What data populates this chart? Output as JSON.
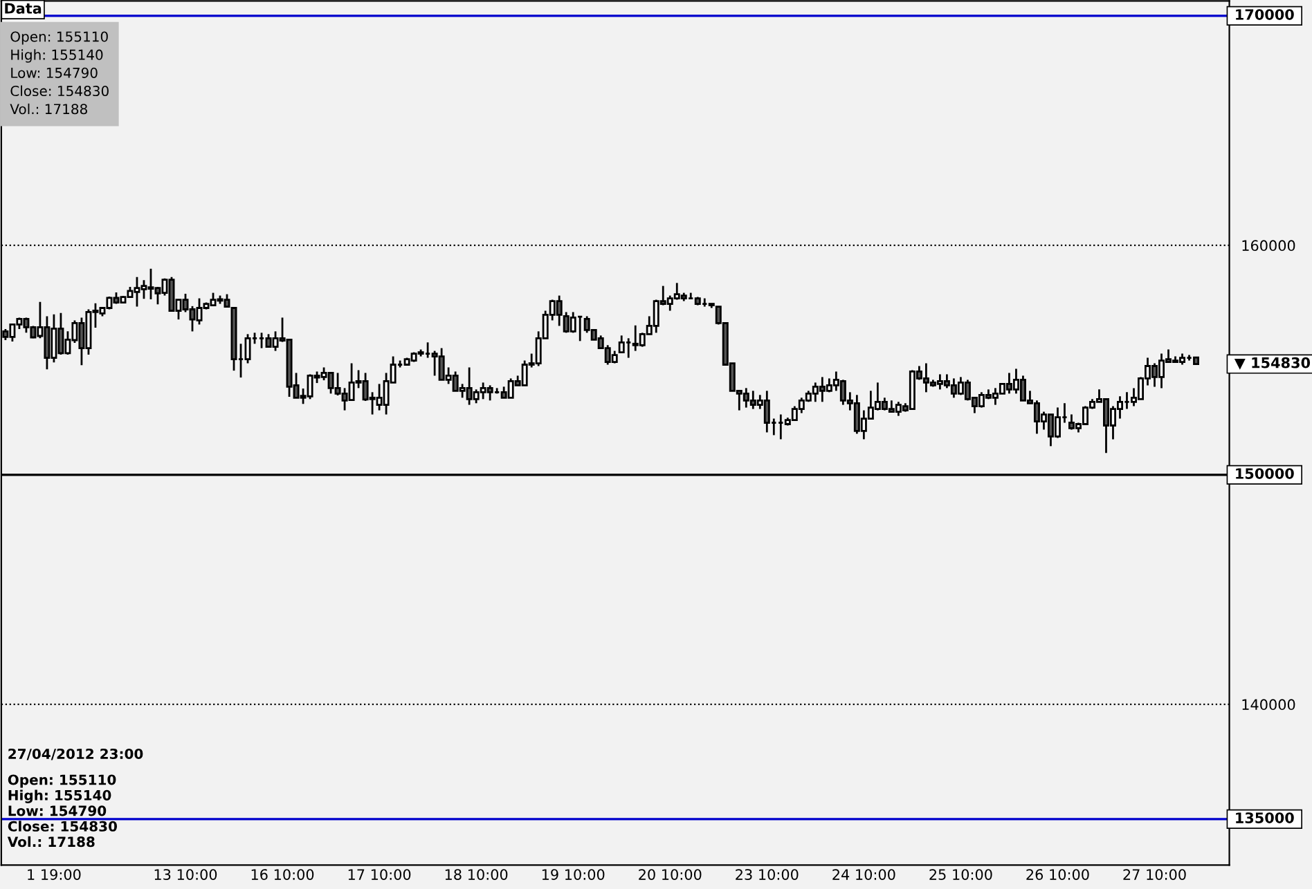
{
  "chart_data": {
    "type": "candlestick",
    "categories": [
      null,
      null,
      null,
      null,
      null,
      null,
      null,
      "1 19:00",
      null,
      null,
      null,
      null,
      null,
      null,
      null,
      null,
      null,
      null,
      null,
      null,
      null,
      null,
      null,
      null,
      null,
      null,
      "13 10:00",
      null,
      null,
      null,
      null,
      null,
      null,
      null,
      null,
      null,
      null,
      null,
      null,
      null,
      "16 10:00",
      null,
      null,
      null,
      null,
      null,
      null,
      null,
      null,
      null,
      null,
      null,
      null,
      null,
      "17 10:00",
      null,
      null,
      null,
      null,
      null,
      null,
      null,
      null,
      null,
      null,
      null,
      null,
      null,
      "18 10:00",
      null,
      null,
      null,
      null,
      null,
      null,
      null,
      null,
      null,
      null,
      null,
      null,
      null,
      "19 10:00",
      null,
      null,
      null,
      null,
      null,
      null,
      null,
      null,
      null,
      null,
      null,
      null,
      null,
      "20 10:00",
      null,
      null,
      null,
      null,
      null,
      null,
      null,
      null,
      null,
      null,
      null,
      null,
      null,
      "23 10:00",
      null,
      null,
      null,
      null,
      null,
      null,
      null,
      null,
      null,
      null,
      null,
      null,
      null,
      "24 10:00",
      null,
      null,
      null,
      null,
      null,
      null,
      null,
      null,
      null,
      null,
      null,
      null,
      null,
      "25 10:00",
      null,
      null,
      null,
      null,
      null,
      null,
      null,
      null,
      null,
      null,
      null,
      null,
      null,
      "26 10:00",
      null,
      null,
      null,
      null,
      null,
      null,
      null,
      null,
      null,
      null,
      null,
      null,
      null,
      "27 10:00",
      null,
      null,
      null,
      null,
      null,
      null
    ],
    "ohlc": [
      [
        156250,
        156350,
        155870,
        156010
      ],
      [
        156010,
        156550,
        155810,
        156550
      ],
      [
        156550,
        156850,
        156350,
        156790
      ],
      [
        156790,
        156850,
        156190,
        156430
      ],
      [
        156430,
        156490,
        155950,
        155990
      ],
      [
        156050,
        157530,
        155950,
        156430
      ],
      [
        156430,
        156910,
        154600,
        155100
      ],
      [
        155100,
        156990,
        154900,
        156370
      ],
      [
        156370,
        157050,
        155240,
        155300
      ],
      [
        155300,
        156250,
        155240,
        155890
      ],
      [
        155870,
        156730,
        155750,
        156610
      ],
      [
        156610,
        156850,
        154780,
        155520
      ],
      [
        155520,
        157210,
        155240,
        157090
      ],
      [
        157090,
        157470,
        156410,
        157150
      ],
      [
        157030,
        157270,
        156910,
        157270
      ],
      [
        157270,
        157770,
        157210,
        157710
      ],
      [
        157710,
        157950,
        157450,
        157510
      ],
      [
        157510,
        157790,
        157470,
        157750
      ],
      [
        157750,
        158190,
        157710,
        158010
      ],
      [
        157970,
        158620,
        157330,
        158140
      ],
      [
        158090,
        158480,
        157670,
        158230
      ],
      [
        158170,
        158980,
        157650,
        158110
      ],
      [
        158140,
        158190,
        157430,
        157910
      ],
      [
        157930,
        158560,
        157810,
        158500
      ],
      [
        158500,
        158620,
        157150,
        157150
      ],
      [
        157150,
        157630,
        156770,
        157630
      ],
      [
        157630,
        157890,
        157090,
        157210
      ],
      [
        157210,
        157350,
        156250,
        156770
      ],
      [
        156730,
        157690,
        156550,
        157270
      ],
      [
        157270,
        157510,
        157210,
        157450
      ],
      [
        157390,
        157930,
        157390,
        157630
      ],
      [
        157650,
        157810,
        157450,
        157590
      ],
      [
        157630,
        157870,
        157330,
        157330
      ],
      [
        157270,
        157270,
        154540,
        155040
      ],
      [
        155040,
        155710,
        154240,
        155040
      ],
      [
        155040,
        156130,
        154860,
        155950
      ],
      [
        155950,
        156190,
        155710,
        155950
      ],
      [
        155950,
        156190,
        155520,
        155950
      ],
      [
        155950,
        156130,
        155580,
        155580
      ],
      [
        155580,
        156250,
        155400,
        155950
      ],
      [
        155950,
        156850,
        155790,
        155850
      ],
      [
        155890,
        155890,
        153400,
        153840
      ],
      [
        153900,
        154440,
        153360,
        153360
      ],
      [
        153440,
        153760,
        153090,
        153360
      ],
      [
        153420,
        154380,
        153300,
        154320
      ],
      [
        154320,
        154500,
        154000,
        154240
      ],
      [
        154260,
        154680,
        154120,
        154440
      ],
      [
        154440,
        154440,
        153540,
        153780
      ],
      [
        153780,
        154440,
        153460,
        153540
      ],
      [
        153540,
        153780,
        152810,
        153240
      ],
      [
        153260,
        154860,
        153220,
        154020
      ],
      [
        154080,
        154560,
        153780,
        154020
      ],
      [
        154080,
        154440,
        153220,
        153280
      ],
      [
        153360,
        153600,
        152630,
        153300
      ],
      [
        153050,
        153960,
        152810,
        153360
      ],
      [
        153050,
        154440,
        152630,
        154080
      ],
      [
        154020,
        155160,
        154020,
        154800
      ],
      [
        154800,
        154980,
        154680,
        154800
      ],
      [
        154800,
        155100,
        154800,
        155040
      ],
      [
        154980,
        155340,
        154920,
        155280
      ],
      [
        155280,
        155460,
        155160,
        155340
      ],
      [
        155280,
        155770,
        155100,
        155280
      ],
      [
        155280,
        155400,
        154320,
        155160
      ],
      [
        155160,
        155520,
        154140,
        154140
      ],
      [
        154140,
        154680,
        153960,
        154320
      ],
      [
        154320,
        154500,
        153660,
        153660
      ],
      [
        153660,
        153960,
        153360,
        153780
      ],
      [
        153780,
        154680,
        153050,
        153300
      ],
      [
        153300,
        153720,
        153120,
        153600
      ],
      [
        153600,
        154020,
        153300,
        153780
      ],
      [
        153780,
        153900,
        153240,
        153600
      ],
      [
        153600,
        153780,
        153540,
        153600
      ],
      [
        153600,
        153840,
        153360,
        153360
      ],
      [
        153360,
        154200,
        153360,
        154080
      ],
      [
        154080,
        154320,
        153900,
        153900
      ],
      [
        153900,
        154980,
        153900,
        154800
      ],
      [
        154860,
        155280,
        154680,
        154800
      ],
      [
        154860,
        156250,
        154740,
        155950
      ],
      [
        155950,
        157150,
        155950,
        156970
      ],
      [
        156970,
        157630,
        156730,
        157570
      ],
      [
        157570,
        157810,
        156490,
        156970
      ],
      [
        156910,
        157090,
        156190,
        156250
      ],
      [
        156250,
        157090,
        156190,
        156850
      ],
      [
        156890,
        156910,
        155830,
        156890
      ],
      [
        156790,
        156910,
        156190,
        156310
      ],
      [
        156310,
        156310,
        155890,
        155890
      ],
      [
        155950,
        156070,
        155520,
        155520
      ],
      [
        155520,
        155650,
        154800,
        154920
      ],
      [
        154920,
        155400,
        154860,
        155220
      ],
      [
        155340,
        156070,
        155340,
        155770
      ],
      [
        155770,
        155950,
        155100,
        155770
      ],
      [
        155710,
        156510,
        155400,
        155650
      ],
      [
        155650,
        156190,
        155580,
        156130
      ],
      [
        156130,
        156910,
        156130,
        156490
      ],
      [
        156490,
        157630,
        156190,
        157570
      ],
      [
        157570,
        158230,
        157390,
        157450
      ],
      [
        157450,
        157810,
        157150,
        157690
      ],
      [
        157690,
        158360,
        157630,
        157870
      ],
      [
        157810,
        157930,
        157570,
        157690
      ],
      [
        157690,
        157930,
        157690,
        157690
      ],
      [
        157690,
        157750,
        157390,
        157450
      ],
      [
        157450,
        157690,
        157330,
        157450
      ],
      [
        157450,
        157450,
        157270,
        157390
      ],
      [
        157330,
        157330,
        156550,
        156610
      ],
      [
        156610,
        156610,
        154800,
        154800
      ],
      [
        154860,
        154860,
        153660,
        153660
      ],
      [
        153660,
        153660,
        152810,
        153540
      ],
      [
        153540,
        153780,
        152930,
        153240
      ],
      [
        153240,
        153660,
        152870,
        153050
      ],
      [
        153050,
        153480,
        152870,
        153240
      ],
      [
        153240,
        153660,
        151850,
        152270
      ],
      [
        152270,
        152450,
        151730,
        152270
      ],
      [
        152270,
        152630,
        151550,
        152270
      ],
      [
        152210,
        152490,
        152150,
        152390
      ],
      [
        152390,
        152990,
        152390,
        152870
      ],
      [
        152870,
        153360,
        152690,
        153240
      ],
      [
        153240,
        153660,
        153180,
        153540
      ],
      [
        153540,
        154020,
        153180,
        153840
      ],
      [
        153840,
        154260,
        153180,
        153660
      ],
      [
        153660,
        154200,
        153600,
        153900
      ],
      [
        153900,
        154500,
        153660,
        154140
      ],
      [
        154080,
        154140,
        153050,
        153240
      ],
      [
        153240,
        153600,
        152810,
        153120
      ],
      [
        153120,
        153480,
        151790,
        151910
      ],
      [
        151910,
        152810,
        151550,
        152450
      ],
      [
        152450,
        153660,
        152450,
        152930
      ],
      [
        152870,
        154020,
        152810,
        153180
      ],
      [
        153180,
        153360,
        152810,
        152870
      ],
      [
        152870,
        153240,
        152750,
        152750
      ],
      [
        152750,
        153180,
        152570,
        153050
      ],
      [
        152990,
        153120,
        152750,
        152810
      ],
      [
        152870,
        154560,
        152870,
        154500
      ],
      [
        154500,
        154740,
        154140,
        154200
      ],
      [
        154200,
        154860,
        153600,
        154020
      ],
      [
        154020,
        154140,
        153840,
        153900
      ],
      [
        153960,
        154380,
        153720,
        154080
      ],
      [
        154080,
        154380,
        153780,
        153900
      ],
      [
        153900,
        154200,
        153360,
        153540
      ],
      [
        153540,
        154260,
        153480,
        154020
      ],
      [
        154020,
        154140,
        153240,
        153300
      ],
      [
        153360,
        153360,
        152690,
        152990
      ],
      [
        152990,
        153600,
        152930,
        153480
      ],
      [
        153480,
        153720,
        153300,
        153360
      ],
      [
        153360,
        153780,
        153050,
        153540
      ],
      [
        153540,
        153960,
        153540,
        153960
      ],
      [
        153960,
        154440,
        153540,
        153720
      ],
      [
        153720,
        154620,
        153540,
        154140
      ],
      [
        154140,
        154320,
        153240,
        153240
      ],
      [
        153240,
        153660,
        153120,
        153120
      ],
      [
        153120,
        153240,
        151790,
        152330
      ],
      [
        152330,
        152750,
        151970,
        152630
      ],
      [
        152630,
        152630,
        151250,
        151670
      ],
      [
        151670,
        152930,
        151610,
        152510
      ],
      [
        152510,
        153120,
        152270,
        152510
      ],
      [
        152270,
        152630,
        151970,
        152030
      ],
      [
        152030,
        152270,
        151850,
        152210
      ],
      [
        152210,
        152990,
        152210,
        152930
      ],
      [
        152930,
        153300,
        152870,
        153180
      ],
      [
        153180,
        153720,
        153180,
        153300
      ],
      [
        153300,
        153300,
        150950,
        152150
      ],
      [
        152150,
        152990,
        151550,
        152870
      ],
      [
        152870,
        153420,
        152450,
        153180
      ],
      [
        153180,
        153600,
        152870,
        153180
      ],
      [
        153180,
        153780,
        152990,
        153360
      ],
      [
        153300,
        154260,
        153300,
        154200
      ],
      [
        154200,
        155100,
        153900,
        154740
      ],
      [
        154740,
        154860,
        153840,
        154260
      ],
      [
        154260,
        155280,
        153780,
        154980
      ],
      [
        155040,
        155460,
        154920,
        154920
      ],
      [
        154980,
        155160,
        154920,
        154920
      ],
      [
        154920,
        155280,
        154800,
        155100
      ],
      [
        155100,
        155220,
        154980,
        155100
      ],
      [
        155110,
        155140,
        154790,
        154830
      ]
    ],
    "colors": [
      "#555555",
      "#ffffff",
      "#ffffff",
      "#555555",
      "#555555",
      "#ffffff",
      "#555555",
      "#ffffff",
      "#555555",
      "#ffffff",
      "#ffffff",
      "#555555",
      "#ffffff",
      "#ffffff",
      "#ffffff",
      "#ffffff",
      "#555555",
      "#ffffff",
      "#ffffff",
      "#ffffff",
      "#ffffff",
      "#555555",
      "#555555",
      "#ffffff",
      "#555555",
      "#ffffff",
      "#555555",
      "#555555",
      "#ffffff",
      "#ffffff",
      "#ffffff",
      "#555555",
      "#555555",
      "#555555",
      "#000000",
      "#ffffff",
      "#000000",
      "#000000",
      "#555555",
      "#ffffff",
      "#555555",
      "#555555",
      "#555555",
      "#555555",
      "#ffffff",
      "#555555",
      "#ffffff",
      "#555555",
      "#555555",
      "#555555",
      "#ffffff",
      "#555555",
      "#555555",
      "#555555",
      "#ffffff",
      "#ffffff",
      "#ffffff",
      "#000000",
      "#ffffff",
      "#ffffff",
      "#ffffff",
      "#000000",
      "#555555",
      "#555555",
      "#ffffff",
      "#555555",
      "#ffffff",
      "#555555",
      "#ffffff",
      "#ffffff",
      "#555555",
      "#000000",
      "#555555",
      "#ffffff",
      "#555555",
      "#ffffff",
      "#555555",
      "#ffffff",
      "#ffffff",
      "#ffffff",
      "#555555",
      "#555555",
      "#ffffff",
      "#000000",
      "#555555",
      "#555555",
      "#555555",
      "#555555",
      "#ffffff",
      "#ffffff",
      "#000000",
      "#555555",
      "#ffffff",
      "#ffffff",
      "#ffffff",
      "#555555",
      "#ffffff",
      "#ffffff",
      "#555555",
      "#000000",
      "#555555",
      "#000000",
      "#555555",
      "#555555",
      "#555555",
      "#555555",
      "#555555",
      "#555555",
      "#555555",
      "#ffffff",
      "#555555",
      "#000000",
      "#000000",
      "#ffffff",
      "#ffffff",
      "#ffffff",
      "#ffffff",
      "#ffffff",
      "#555555",
      "#ffffff",
      "#ffffff",
      "#555555",
      "#555555",
      "#555555",
      "#ffffff",
      "#ffffff",
      "#ffffff",
      "#555555",
      "#555555",
      "#ffffff",
      "#555555",
      "#ffffff",
      "#555555",
      "#555555",
      "#555555",
      "#ffffff",
      "#555555",
      "#555555",
      "#ffffff",
      "#555555",
      "#555555",
      "#ffffff",
      "#555555",
      "#ffffff",
      "#ffffff",
      "#555555",
      "#ffffff",
      "#555555",
      "#555555",
      "#555555",
      "#ffffff",
      "#555555",
      "#ffffff",
      "#000000",
      "#555555",
      "#ffffff",
      "#ffffff",
      "#ffffff",
      "#ffffff",
      "#555555",
      "#ffffff",
      "#ffffff",
      "#000000",
      "#ffffff",
      "#ffffff",
      "#ffffff",
      "#555555",
      "#ffffff",
      "#555555",
      "#555555",
      "#ffffff",
      "#000000",
      "#555555"
    ],
    "ylim": [
      133000,
      170650
    ],
    "yticks": [
      140000,
      160000
    ],
    "grid": "y",
    "line_style": "dotted",
    "ref_lines": [
      {
        "axis": "y",
        "value": 170000,
        "label": "170000",
        "color": "#0000cc"
      },
      {
        "axis": "y",
        "value": 150000,
        "label": "150000",
        "color": "#000000"
      },
      {
        "axis": "y",
        "value": 135000,
        "label": "135000",
        "color": "#0000cc"
      }
    ],
    "annotations": [
      "Data",
      "Open: 155110\nHigh: 155140\nLow: 154790\nClose: 154830\nVol.: 17188",
      "27/04/2012 23:00",
      "Open: 155110\nHigh: 155140\nLow: 154790\nClose: 154830\nVol.: 17188",
      "▼ 154830"
    ],
    "legend": false
  }
}
